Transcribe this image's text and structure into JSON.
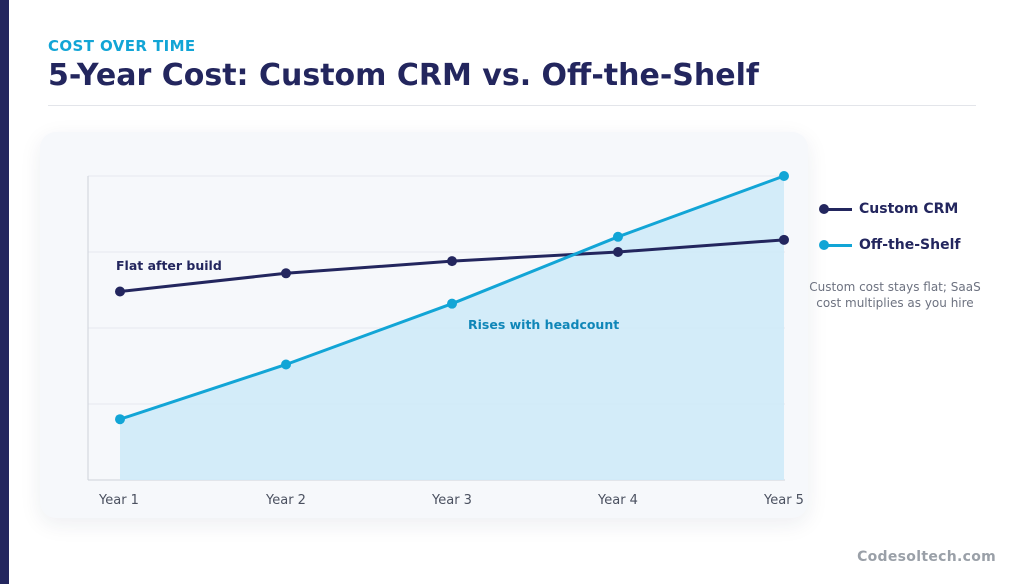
{
  "header": {
    "eyebrow": "COST OVER TIME",
    "title": "5-Year Cost: Custom CRM vs. Off-the-Shelf"
  },
  "chart_data": {
    "type": "line",
    "categories": [
      "Year 1",
      "Year 2",
      "Year 3",
      "Year 4",
      "Year 5"
    ],
    "series": [
      {
        "name": "Custom CRM",
        "values": [
          62,
          68,
          72,
          75,
          79
        ],
        "color": "#23265e"
      },
      {
        "name": "Off-the-Shelf",
        "values": [
          20,
          38,
          58,
          80,
          100
        ],
        "color": "#12a5d6",
        "fill": "#cfeaf8"
      }
    ],
    "ylim": [
      0,
      100
    ],
    "y_tick_labels": false,
    "grid": true,
    "legend_position": "right",
    "annotations": [
      {
        "text": "Flat after build",
        "series": "Custom CRM"
      },
      {
        "text": "Rises with headcount",
        "series": "Off-the-Shelf"
      }
    ],
    "note": "Custom cost stays flat; SaaS cost multiplies as you hire"
  },
  "footer": {
    "brand": "Codesoltech.com"
  }
}
